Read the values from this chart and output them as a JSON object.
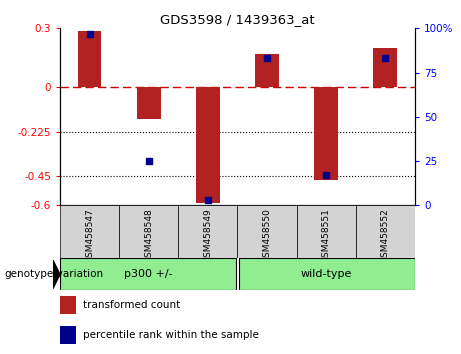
{
  "title": "GDS3598 / 1439363_at",
  "samples": [
    "GSM458547",
    "GSM458548",
    "GSM458549",
    "GSM458550",
    "GSM458551",
    "GSM458552"
  ],
  "red_bar_values": [
    0.285,
    -0.16,
    -0.59,
    0.17,
    -0.47,
    0.2
  ],
  "blue_dot_values": [
    97,
    25,
    3,
    83,
    17,
    83
  ],
  "ylim_left": [
    -0.6,
    0.3
  ],
  "ylim_right": [
    0,
    100
  ],
  "yticks_left": [
    0.3,
    0,
    -0.225,
    -0.45,
    -0.6
  ],
  "yticks_right": [
    100,
    75,
    50,
    25,
    0
  ],
  "hlines": [
    -0.225,
    -0.45
  ],
  "zero_line": 0,
  "bar_color": "#B22222",
  "dot_color": "#00008B",
  "zero_line_color": "#CC0000",
  "bg_color": "#FFFFFF",
  "sample_box_color": "#D3D3D3",
  "group1_label": "p300 +/-",
  "group2_label": "wild-type",
  "group_color": "#90EE90",
  "group_row_label": "genotype/variation",
  "legend_red": "transformed count",
  "legend_blue": "percentile rank within the sample",
  "bar_width": 0.4,
  "dot_size": 25,
  "n_group1": 3,
  "n_group2": 3
}
